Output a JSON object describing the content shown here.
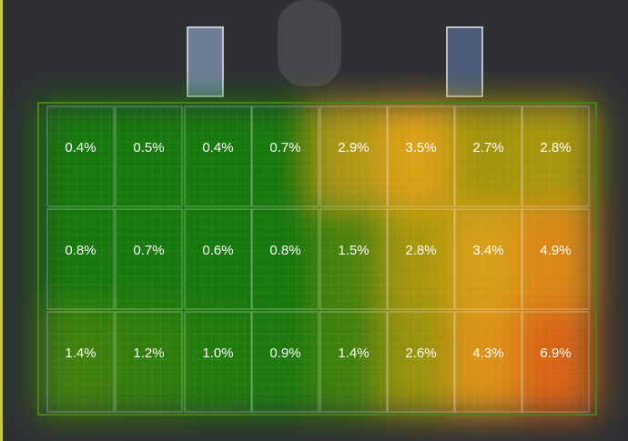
{
  "panels": {
    "rows": [
      [
        "0.4%",
        "0.5%",
        "0.4%",
        "0.7%",
        "2.9%",
        "3.5%",
        "2.7%",
        "2.8%"
      ],
      [
        "0.8%",
        "0.7%",
        "0.6%",
        "0.8%",
        "1.5%",
        "2.8%",
        "3.4%",
        "4.9%"
      ],
      [
        "1.4%",
        "1.2%",
        "1.0%",
        "0.9%",
        "1.4%",
        "2.6%",
        "4.3%",
        "6.9%"
      ]
    ]
  }
}
